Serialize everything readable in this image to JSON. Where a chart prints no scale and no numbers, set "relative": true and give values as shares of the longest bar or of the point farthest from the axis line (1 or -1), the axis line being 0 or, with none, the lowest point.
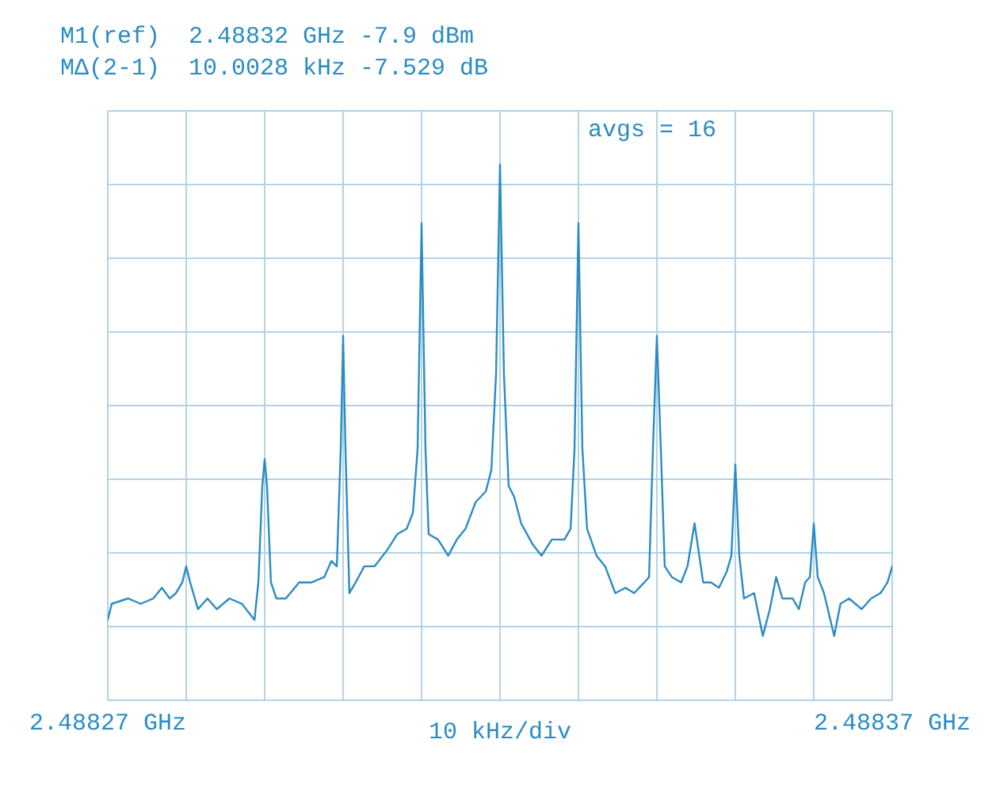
{
  "chart_data": {
    "type": "line",
    "relative": true,
    "xlabel": "10 kHz/div",
    "annotations": [
      "M1(ref)  2.48832 GHz -7.9 dBm",
      "MΔ(2-1)  10.0028 kHz -7.529 dB",
      "avgs = 16"
    ],
    "xlim": [
      2.48827,
      2.48837
    ],
    "xticks": [
      {
        "value": 2.48827,
        "label": "2.48827 GHz"
      },
      {
        "value": 2.48828,
        "label": null
      },
      {
        "value": 2.48829,
        "label": null
      },
      {
        "value": 2.4883,
        "label": null
      },
      {
        "value": 2.48831,
        "label": null
      },
      {
        "value": 2.48832,
        "label": null
      },
      {
        "value": 2.48833,
        "label": null
      },
      {
        "value": 2.48834,
        "label": null
      },
      {
        "value": 2.48835,
        "label": null
      },
      {
        "value": 2.48836,
        "label": null
      },
      {
        "value": 2.48837,
        "label": "2.48837 GHz"
      }
    ],
    "grid": true,
    "series": [
      {
        "color": "#2a8cc4",
        "x": [
          2.48827,
          2.4882705,
          2.4882726,
          2.4882742,
          2.4882758,
          2.4882769,
          2.4882779,
          2.4882787,
          2.4882795,
          2.48828,
          2.4882805,
          2.4882815,
          2.4882827,
          2.4882839,
          2.4882855,
          2.4882871,
          2.4882887,
          2.4882892,
          2.4882897,
          2.48829,
          2.4882903,
          2.4882908,
          2.4882915,
          2.4882927,
          2.4882944,
          2.488296,
          2.4882976,
          2.4882985,
          2.4882992,
          2.4882997,
          2.4883,
          2.4883003,
          2.4883008,
          2.4883016,
          2.4883027,
          2.488304,
          2.4883056,
          2.4883069,
          2.4883081,
          2.4883089,
          2.4883095,
          2.48831,
          2.4883105,
          2.4883109,
          2.4883121,
          2.4883134,
          2.4883145,
          2.4883156,
          2.4883169,
          2.4883182,
          2.4883189,
          2.4883195,
          2.48832,
          2.4883205,
          2.4883211,
          2.4883218,
          2.4883227,
          2.4883242,
          2.4883253,
          2.4883266,
          2.4883282,
          2.488329,
          2.4883295,
          2.48833,
          2.4883305,
          2.4883311,
          2.4883323,
          2.4883334,
          2.4883347,
          2.488336,
          2.4883371,
          2.4883384,
          2.488339,
          2.4883395,
          2.48834,
          2.4883405,
          2.488341,
          2.4883419,
          2.4883431,
          2.4883439,
          2.4883448,
          2.4883453,
          2.4883459,
          2.4883469,
          2.4883479,
          2.4883489,
          2.4883495,
          2.48835,
          2.4883505,
          2.4883511,
          2.4883524,
          2.4883535,
          2.4883544,
          2.4883552,
          2.488356,
          2.4883573,
          2.4883581,
          2.4883589,
          2.4883595,
          2.48836,
          2.4883605,
          2.4883613,
          2.4883626,
          2.4883634,
          2.4883645,
          2.4883661,
          2.4883673,
          2.4883685,
          2.4883694,
          2.48837
        ],
        "values": [
          0.15,
          0.18,
          0.19,
          0.18,
          0.19,
          0.21,
          0.19,
          0.2,
          0.22,
          0.25,
          0.22,
          0.17,
          0.19,
          0.17,
          0.19,
          0.18,
          0.15,
          0.22,
          0.4,
          0.45,
          0.4,
          0.22,
          0.19,
          0.19,
          0.22,
          0.22,
          0.23,
          0.26,
          0.25,
          0.47,
          0.68,
          0.47,
          0.2,
          0.22,
          0.25,
          0.25,
          0.28,
          0.31,
          0.32,
          0.35,
          0.47,
          0.89,
          0.47,
          0.31,
          0.3,
          0.27,
          0.3,
          0.32,
          0.37,
          0.39,
          0.43,
          0.61,
          1,
          0.61,
          0.4,
          0.38,
          0.33,
          0.29,
          0.27,
          0.3,
          0.3,
          0.32,
          0.47,
          0.89,
          0.47,
          0.32,
          0.27,
          0.25,
          0.2,
          0.21,
          0.2,
          0.22,
          0.23,
          0.47,
          0.68,
          0.47,
          0.25,
          0.23,
          0.22,
          0.25,
          0.33,
          0.28,
          0.22,
          0.22,
          0.21,
          0.24,
          0.27,
          0.44,
          0.27,
          0.19,
          0.2,
          0.12,
          0.17,
          0.23,
          0.19,
          0.19,
          0.17,
          0.22,
          0.23,
          0.33,
          0.23,
          0.2,
          0.12,
          0.18,
          0.19,
          0.17,
          0.19,
          0.2,
          0.22,
          0.25
        ]
      }
    ]
  }
}
